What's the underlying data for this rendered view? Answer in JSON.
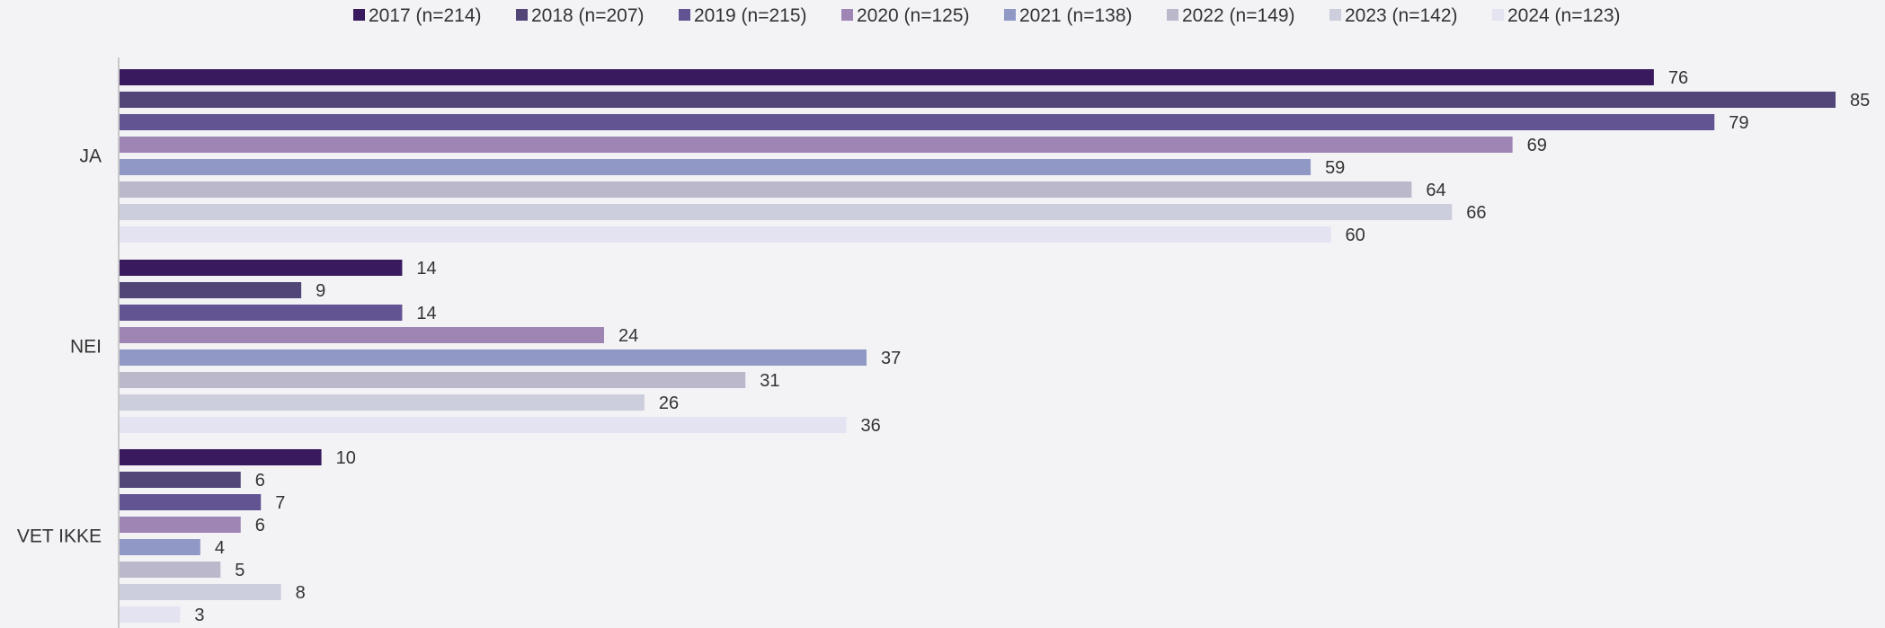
{
  "chart_data": {
    "type": "bar",
    "orientation": "horizontal",
    "categories": [
      "JA",
      "NEI",
      "VET IKKE"
    ],
    "series": [
      {
        "name": "2017 (n=214)",
        "color": "#3a1a5e",
        "values": [
          76,
          14,
          10
        ]
      },
      {
        "name": "2018 (n=207)",
        "color": "#524678",
        "values": [
          85,
          9,
          6
        ]
      },
      {
        "name": "2019 (n=215)",
        "color": "#625392",
        "values": [
          79,
          14,
          7
        ]
      },
      {
        "name": "2020 (n=125)",
        "color": "#9e85b4",
        "values": [
          69,
          24,
          6
        ]
      },
      {
        "name": "2021 (n=138)",
        "color": "#9099c6",
        "values": [
          59,
          37,
          4
        ]
      },
      {
        "name": "2022 (n=149)",
        "color": "#bbb8cc",
        "values": [
          64,
          31,
          5
        ]
      },
      {
        "name": "2023 (n=142)",
        "color": "#cccede",
        "values": [
          66,
          26,
          8
        ]
      },
      {
        "name": "2024 (n=123)",
        "color": "#e3e3f2",
        "values": [
          60,
          36,
          3
        ]
      }
    ],
    "xlim": [
      0,
      85
    ],
    "legend_position": "top",
    "grid": false,
    "data_labels": true
  }
}
